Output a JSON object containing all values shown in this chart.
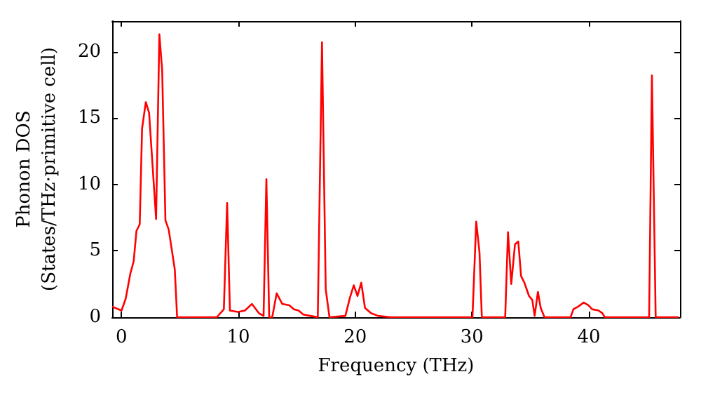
{
  "chart_data": {
    "type": "line",
    "xlabel": "Frequency (THz)",
    "ylabel": "Phonon DOS\n(States/THz·primitive cell)",
    "xlim": [
      -0.8,
      47.8
    ],
    "ylim": [
      0,
      22.3
    ],
    "xticks": [
      0,
      10,
      20,
      30,
      40
    ],
    "yticks": [
      0,
      5,
      10,
      15,
      20
    ],
    "grid": false,
    "marker": "none",
    "line_style": "solid",
    "series": [
      {
        "color": "#ff0000",
        "x": [
          -0.8,
          0,
          0.36,
          0.76,
          1.04,
          1.28,
          1.56,
          1.76,
          2.08,
          2.36,
          2.96,
          3.24,
          3.48,
          3.76,
          4.04,
          4.56,
          4.76,
          8.16,
          8.76,
          9.04,
          9.28,
          9.96,
          10.56,
          11.16,
          11.76,
          12.16,
          12.4,
          12.64,
          12.9,
          13.28,
          13.76,
          14.36,
          14.76,
          15.16,
          15.56,
          16.16,
          16.8,
          17.16,
          17.48,
          17.8,
          19.16,
          19.56,
          19.88,
          20.2,
          20.52,
          20.84,
          21.36,
          21.96,
          23,
          30.04,
          30.36,
          30.64,
          30.84,
          32.84,
          33.08,
          33.36,
          33.68,
          33.96,
          34.2,
          34.48,
          34.88,
          35.16,
          35.36,
          35.64,
          35.88,
          36.2,
          38.44,
          38.68,
          39.08,
          39.56,
          39.96,
          40.28,
          40.84,
          41.16,
          41.36,
          45.16,
          45.4,
          45.72,
          47.7
        ],
        "values": [
          0.8,
          0.5,
          1.4,
          3.3,
          4.2,
          6.5,
          7.0,
          14.2,
          16.2,
          15.4,
          7.4,
          21.3,
          18.6,
          7.3,
          6.6,
          3.6,
          0,
          0,
          0.6,
          8.6,
          0.5,
          0.4,
          0.5,
          1.0,
          0.3,
          0.1,
          10.4,
          0,
          0,
          1.8,
          1.0,
          0.9,
          0.6,
          0.5,
          0.2,
          0.1,
          0,
          20.7,
          2.1,
          0,
          0.1,
          1.5,
          2.4,
          1.6,
          2.6,
          0.7,
          0.3,
          0.1,
          0,
          0,
          7.2,
          4.9,
          0,
          0,
          6.4,
          2.5,
          5.5,
          5.7,
          3.1,
          2.6,
          1.6,
          1.3,
          0.1,
          1.9,
          0.7,
          0,
          0,
          0.6,
          0.8,
          1.1,
          0.9,
          0.6,
          0.5,
          0.3,
          0,
          0,
          18.2,
          0,
          0
        ]
      }
    ]
  }
}
